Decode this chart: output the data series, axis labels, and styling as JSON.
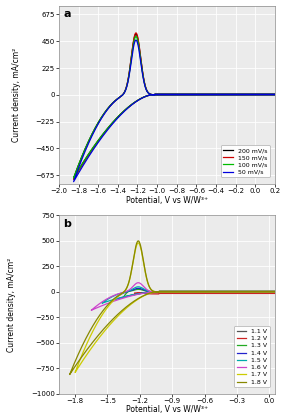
{
  "subplot_a": {
    "title": "a",
    "xlabel": "Potential, V vs W/W³⁺",
    "ylabel": "Current density, mA/cm²",
    "xlim": [
      -2.0,
      0.2
    ],
    "ylim": [
      -750,
      750
    ],
    "yticks": [
      -675,
      -450,
      -225,
      0,
      225,
      450,
      675
    ],
    "xticks": [
      -2.0,
      -1.8,
      -1.6,
      -1.4,
      -1.2,
      -1.0,
      -0.8,
      -0.6,
      -0.4,
      -0.2,
      0.0,
      0.2
    ],
    "series": [
      {
        "label": "200 mV/s",
        "color": "#000000",
        "peak_anodic": 510,
        "peak_cathodic": -700,
        "neg_limit": -1.85
      },
      {
        "label": "150 mV/s",
        "color": "#cc0000",
        "peak_anodic": 520,
        "peak_cathodic": -710,
        "neg_limit": -1.85
      },
      {
        "label": "100 mV/s",
        "color": "#00bb00",
        "peak_anodic": 490,
        "peak_cathodic": -700,
        "neg_limit": -1.85
      },
      {
        "label": "50 mV/s",
        "color": "#0000dd",
        "peak_anodic": 460,
        "peak_cathodic": -730,
        "neg_limit": -1.85
      }
    ]
  },
  "subplot_b": {
    "title": "b",
    "xlabel": "Potential, V vs W/W³⁺",
    "ylabel": "Current density, mA/cm²",
    "xlim": [
      -1.95,
      0.05
    ],
    "ylim": [
      -1000,
      750
    ],
    "yticks": [
      -1000,
      -750,
      -500,
      -250,
      0,
      250,
      500,
      750
    ],
    "xticks": [
      -1.8,
      -1.5,
      -1.2,
      -0.9,
      -0.6,
      -0.3,
      0.0
    ],
    "series": [
      {
        "label": "1.1 V",
        "color": "#555555",
        "peak_anodic": 8,
        "peak_cathodic": -8,
        "neg_limit": -1.15
      },
      {
        "label": "1.2 V",
        "color": "#cc2222",
        "peak_anodic": 12,
        "peak_cathodic": -20,
        "neg_limit": -1.25
      },
      {
        "label": "1.3 V",
        "color": "#22aa22",
        "peak_anodic": 25,
        "peak_cathodic": -50,
        "neg_limit": -1.35
      },
      {
        "label": "1.4 V",
        "color": "#2222cc",
        "peak_anodic": 35,
        "peak_cathodic": -80,
        "neg_limit": -1.45
      },
      {
        "label": "1.5 V",
        "color": "#00aaaa",
        "peak_anodic": 50,
        "peak_cathodic": -110,
        "neg_limit": -1.55
      },
      {
        "label": "1.6 V",
        "color": "#cc44cc",
        "peak_anodic": 90,
        "peak_cathodic": -180,
        "neg_limit": -1.65
      },
      {
        "label": "1.7 V",
        "color": "#cccc00",
        "peak_anodic": 480,
        "peak_cathodic": -790,
        "neg_limit": -1.8
      },
      {
        "label": "1.8 V",
        "color": "#888800",
        "peak_anodic": 500,
        "peak_cathodic": -810,
        "neg_limit": -1.85
      }
    ]
  },
  "background_color": "#ebebeb",
  "grid_color": "#ffffff",
  "figsize": [
    2.86,
    4.2
  ],
  "dpi": 100
}
